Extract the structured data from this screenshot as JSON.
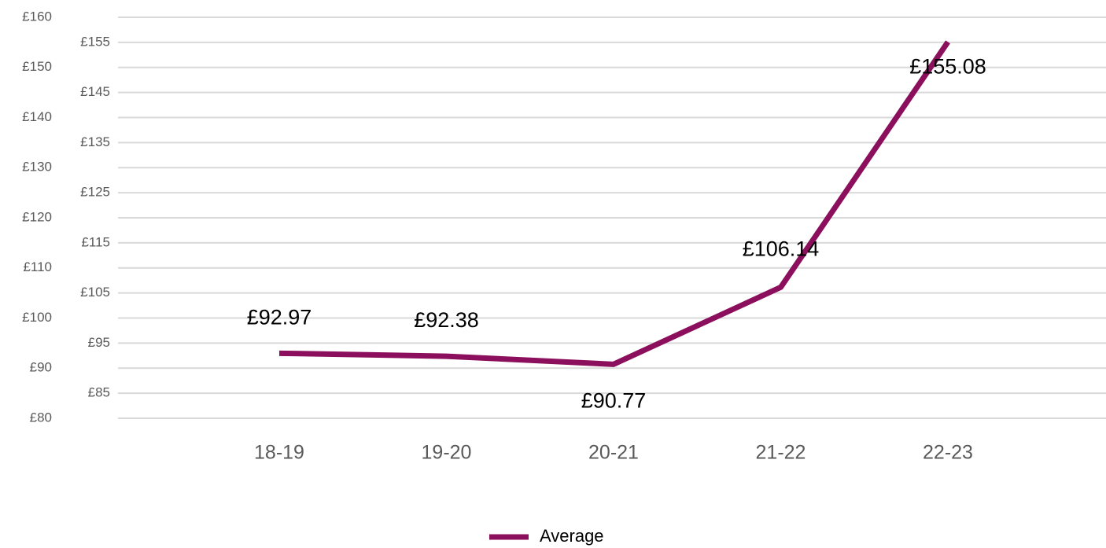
{
  "chart_data": {
    "type": "line",
    "categories": [
      "18-19",
      "19-20",
      "20-21",
      "21-22",
      "22-23"
    ],
    "series": [
      {
        "name": "Average",
        "color": "#8b0f5c",
        "values": [
          92.97,
          92.38,
          90.77,
          106.14,
          155.08
        ],
        "value_labels": [
          "£92.97",
          "£92.38",
          "£90.77",
          "£106.14",
          "£155.08"
        ]
      }
    ],
    "ylim": [
      80,
      160
    ],
    "yticks": [
      {
        "value": 80,
        "label": "£80"
      },
      {
        "value": 85,
        "label": "£85"
      },
      {
        "value": 90,
        "label": "£90"
      },
      {
        "value": 95,
        "label": "£95"
      },
      {
        "value": 100,
        "label": "£100"
      },
      {
        "value": 105,
        "label": "£105"
      },
      {
        "value": 110,
        "label": "£110"
      },
      {
        "value": 115,
        "label": "£115"
      },
      {
        "value": 120,
        "label": "£120"
      },
      {
        "value": 125,
        "label": "£125"
      },
      {
        "value": 130,
        "label": "£130"
      },
      {
        "value": 135,
        "label": "£135"
      },
      {
        "value": 140,
        "label": "£140"
      },
      {
        "value": 145,
        "label": "£145"
      },
      {
        "value": 150,
        "label": "£150"
      },
      {
        "value": 155,
        "label": "£155"
      },
      {
        "value": 160,
        "label": "£160"
      }
    ],
    "grid": true,
    "legend": "bottom"
  }
}
